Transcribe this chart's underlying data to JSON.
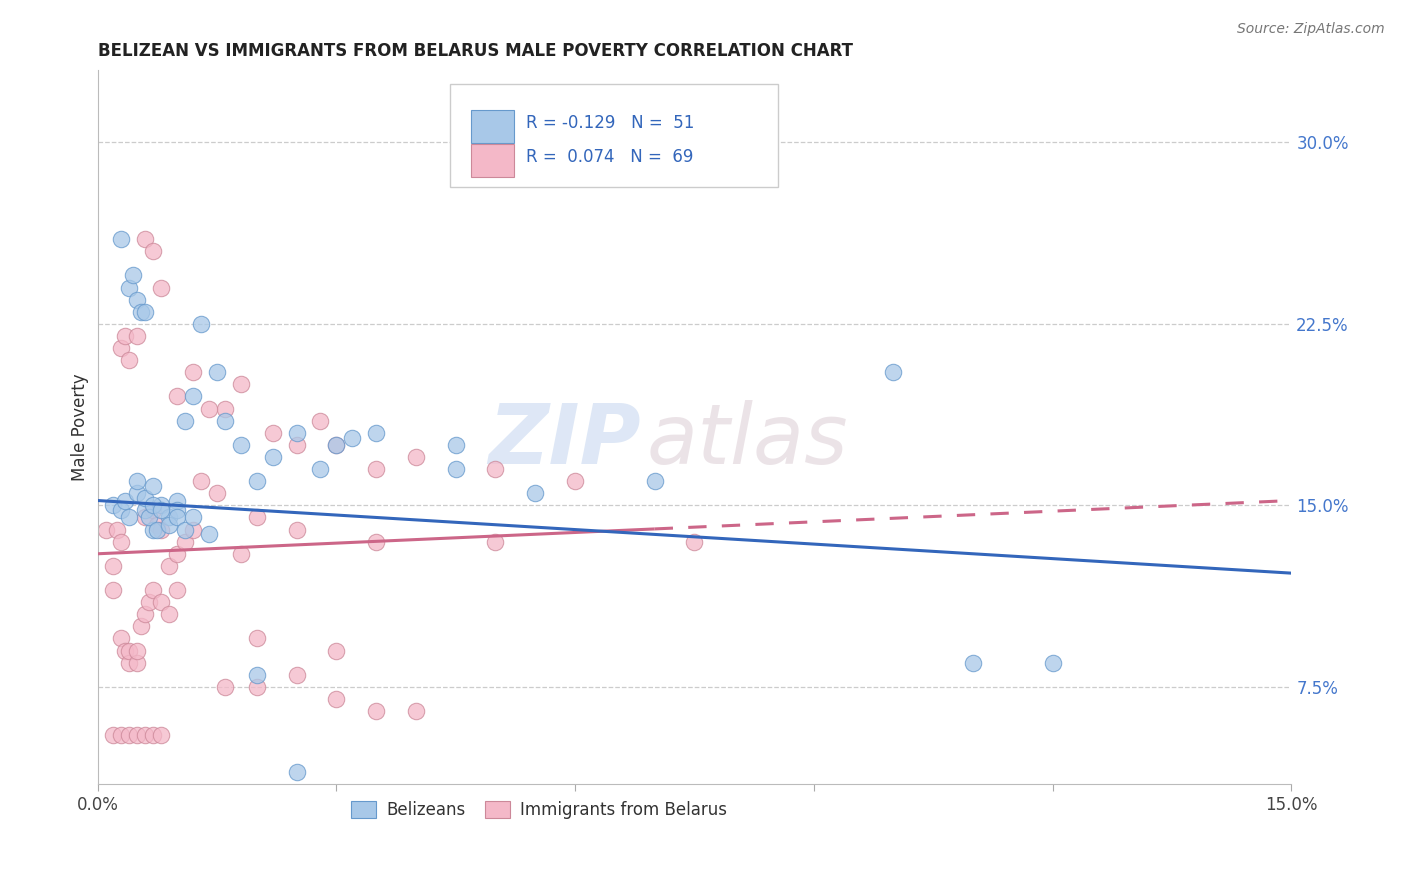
{
  "title": "BELIZEAN VS IMMIGRANTS FROM BELARUS MALE POVERTY CORRELATION CHART",
  "source": "Source: ZipAtlas.com",
  "ylabel": "Male Poverty",
  "y_ticks": [
    7.5,
    15.0,
    22.5,
    30.0
  ],
  "y_tick_labels": [
    "7.5%",
    "15.0%",
    "22.5%",
    "30.0%"
  ],
  "x_range": [
    0.0,
    15.0
  ],
  "y_range": [
    3.5,
    33.0
  ],
  "legend_label1": "Belizeans",
  "legend_label2": "Immigrants from Belarus",
  "blue_color": "#a8c8e8",
  "blue_edge_color": "#6699cc",
  "blue_line_color": "#3366bb",
  "pink_color": "#f4b8c8",
  "pink_edge_color": "#cc8899",
  "pink_line_color": "#cc6688",
  "blue_line_x0": 0.0,
  "blue_line_y0": 15.2,
  "blue_line_x1": 15.0,
  "blue_line_y1": 12.2,
  "pink_line_x0": 0.0,
  "pink_line_y0": 13.0,
  "pink_line_x1": 15.0,
  "pink_line_y1": 15.2,
  "dash_start_x": 7.0,
  "blue_scatter_x": [
    0.2,
    0.3,
    0.35,
    0.4,
    0.5,
    0.5,
    0.6,
    0.6,
    0.7,
    0.7,
    0.8,
    0.9,
    1.0,
    1.0,
    1.1,
    1.2,
    1.3,
    1.5,
    1.6,
    1.8,
    2.0,
    2.2,
    2.5,
    2.8,
    3.0,
    3.2,
    3.5,
    4.5,
    4.5,
    5.5,
    7.0,
    10.0,
    11.0,
    12.0,
    0.3,
    0.4,
    0.45,
    0.5,
    0.55,
    0.6,
    0.65,
    0.7,
    0.75,
    0.8,
    0.9,
    1.0,
    1.1,
    1.2,
    1.4,
    2.0,
    2.5
  ],
  "blue_scatter_y": [
    15.0,
    14.8,
    15.2,
    14.5,
    15.5,
    16.0,
    14.8,
    15.3,
    14.0,
    15.8,
    15.0,
    14.5,
    15.2,
    14.8,
    18.5,
    19.5,
    22.5,
    20.5,
    18.5,
    17.5,
    16.0,
    17.0,
    18.0,
    16.5,
    17.5,
    17.8,
    18.0,
    17.5,
    16.5,
    15.5,
    16.0,
    20.5,
    8.5,
    8.5,
    26.0,
    24.0,
    24.5,
    23.5,
    23.0,
    23.0,
    14.5,
    15.0,
    14.0,
    14.8,
    14.2,
    14.5,
    14.0,
    14.5,
    13.8,
    8.0,
    4.0
  ],
  "pink_scatter_x": [
    0.1,
    0.2,
    0.2,
    0.25,
    0.3,
    0.3,
    0.35,
    0.4,
    0.4,
    0.5,
    0.5,
    0.55,
    0.6,
    0.6,
    0.65,
    0.7,
    0.7,
    0.75,
    0.8,
    0.8,
    0.9,
    0.9,
    1.0,
    1.0,
    1.1,
    1.2,
    1.3,
    1.5,
    1.6,
    1.8,
    2.0,
    2.2,
    2.5,
    2.8,
    3.0,
    3.5,
    4.0,
    5.0,
    6.0,
    0.3,
    0.35,
    0.4,
    0.5,
    0.6,
    0.7,
    0.8,
    1.0,
    1.2,
    1.4,
    1.6,
    2.0,
    2.5,
    3.0,
    3.5,
    4.0,
    1.8,
    2.5,
    3.5,
    5.0,
    7.5,
    2.0,
    3.0,
    0.2,
    0.3,
    0.4,
    0.5,
    0.6,
    0.7,
    0.8
  ],
  "pink_scatter_y": [
    14.0,
    12.5,
    11.5,
    14.0,
    13.5,
    9.5,
    9.0,
    8.5,
    9.0,
    8.5,
    9.0,
    10.0,
    10.5,
    14.5,
    11.0,
    14.8,
    11.5,
    14.2,
    14.0,
    11.0,
    12.5,
    10.5,
    11.5,
    13.0,
    13.5,
    14.0,
    16.0,
    15.5,
    19.0,
    20.0,
    14.5,
    18.0,
    17.5,
    18.5,
    17.5,
    16.5,
    17.0,
    16.5,
    16.0,
    21.5,
    22.0,
    21.0,
    22.0,
    26.0,
    25.5,
    24.0,
    19.5,
    20.5,
    19.0,
    7.5,
    7.5,
    8.0,
    7.0,
    6.5,
    6.5,
    13.0,
    14.0,
    13.5,
    13.5,
    13.5,
    9.5,
    9.0,
    5.5,
    5.5,
    5.5,
    5.5,
    5.5,
    5.5,
    5.5
  ]
}
